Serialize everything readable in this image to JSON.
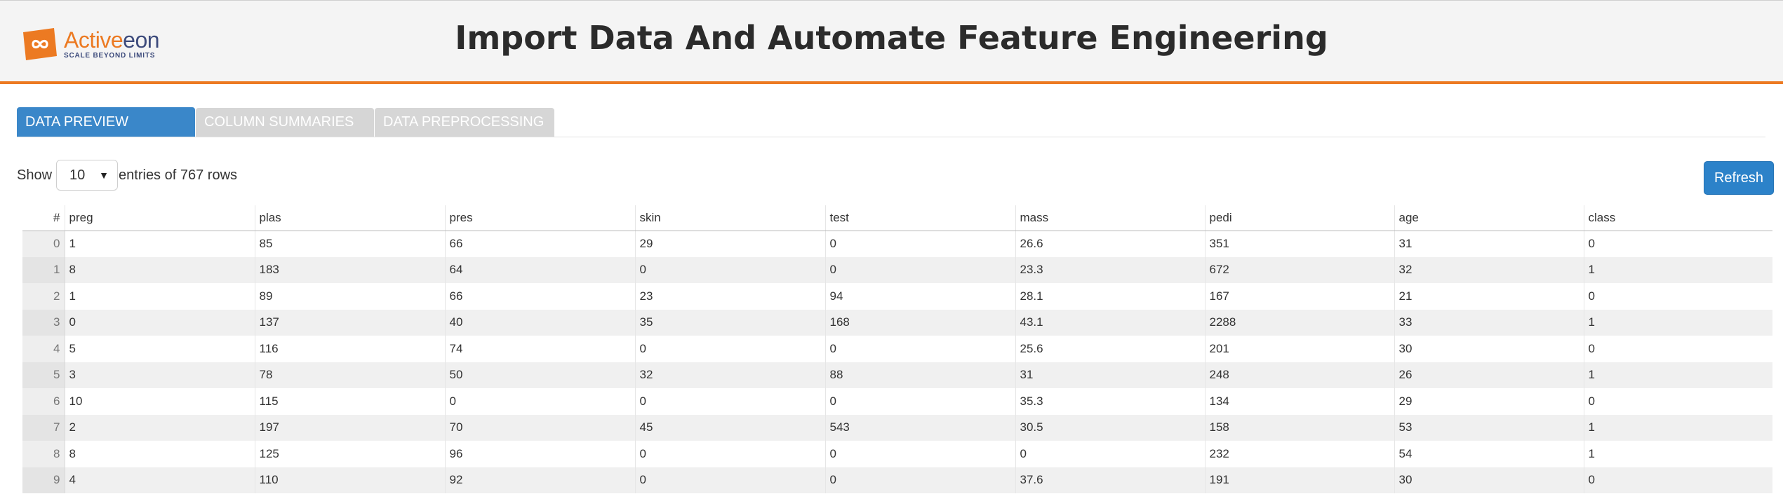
{
  "header": {
    "title": "Import Data And Automate Feature Engineering",
    "logo": {
      "name_part1": "Active",
      "name_part2": "eon",
      "tagline": "SCALE BEYOND LIMITS",
      "icon": "activeeon-infinity-logo-icon",
      "brand_color": "#ec7a22",
      "brand_dark": "#3d4b7c"
    }
  },
  "tabs": [
    {
      "label": "DATA PREVIEW",
      "active": true
    },
    {
      "label": "COLUMN SUMMARIES",
      "active": false
    },
    {
      "label": "DATA PREPROCESSING",
      "active": false
    }
  ],
  "controls": {
    "show_label": "Show",
    "entries_value": "10",
    "entries_suffix": "entries of 767 rows",
    "refresh_label": "Refresh"
  },
  "table": {
    "index_header": "#",
    "columns": [
      "preg",
      "plas",
      "pres",
      "skin",
      "test",
      "mass",
      "pedi",
      "age",
      "class"
    ],
    "rows": [
      {
        "idx": "0",
        "cells": [
          "1",
          "85",
          "66",
          "29",
          "0",
          "26.6",
          "351",
          "31",
          "0"
        ]
      },
      {
        "idx": "1",
        "cells": [
          "8",
          "183",
          "64",
          "0",
          "0",
          "23.3",
          "672",
          "32",
          "1"
        ]
      },
      {
        "idx": "2",
        "cells": [
          "1",
          "89",
          "66",
          "23",
          "94",
          "28.1",
          "167",
          "21",
          "0"
        ]
      },
      {
        "idx": "3",
        "cells": [
          "0",
          "137",
          "40",
          "35",
          "168",
          "43.1",
          "2288",
          "33",
          "1"
        ]
      },
      {
        "idx": "4",
        "cells": [
          "5",
          "116",
          "74",
          "0",
          "0",
          "25.6",
          "201",
          "30",
          "0"
        ]
      },
      {
        "idx": "5",
        "cells": [
          "3",
          "78",
          "50",
          "32",
          "88",
          "31",
          "248",
          "26",
          "1"
        ]
      },
      {
        "idx": "6",
        "cells": [
          "10",
          "115",
          "0",
          "0",
          "0",
          "35.3",
          "134",
          "29",
          "0"
        ]
      },
      {
        "idx": "7",
        "cells": [
          "2",
          "197",
          "70",
          "45",
          "543",
          "30.5",
          "158",
          "53",
          "1"
        ]
      },
      {
        "idx": "8",
        "cells": [
          "8",
          "125",
          "96",
          "0",
          "0",
          "0",
          "232",
          "54",
          "1"
        ]
      },
      {
        "idx": "9",
        "cells": [
          "4",
          "110",
          "92",
          "0",
          "0",
          "37.6",
          "191",
          "30",
          "0"
        ]
      }
    ]
  }
}
